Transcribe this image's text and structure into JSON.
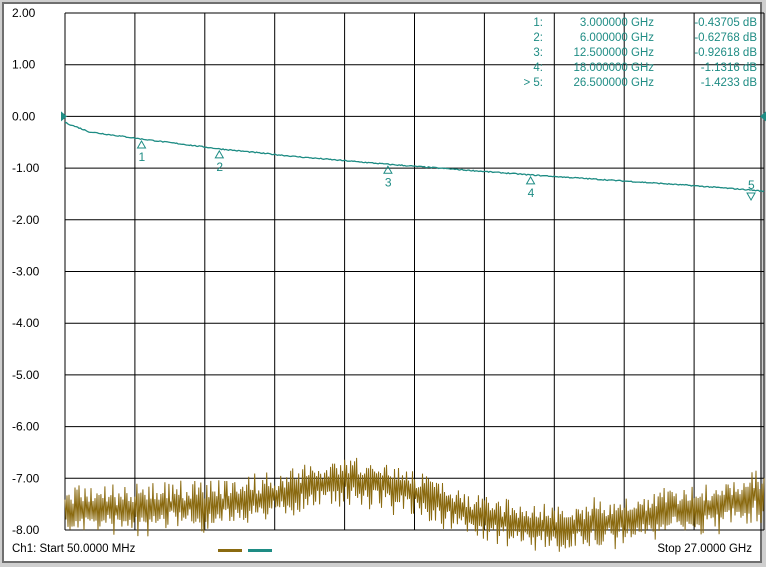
{
  "colors": {
    "trace1": "#1e8c84",
    "trace2": "#8a6a10",
    "grid": "#000000",
    "marker": "#1e8c84"
  },
  "status": {
    "start_label": "Ch1: Start  50.0000 MHz",
    "stop_label": "Stop  27.0000 GHz"
  },
  "chart_data": {
    "type": "line",
    "ylim": [
      -8,
      2
    ],
    "xlim": [
      0.05,
      27
    ],
    "y_ticks": [
      "2.00",
      "1.00",
      "0.00",
      "-1.00",
      "-2.00",
      "-3.00",
      "-4.00",
      "-5.00",
      "-6.00",
      "-7.00",
      "-8.00"
    ],
    "grid": true,
    "series": [
      {
        "x": [
          0.05,
          1,
          3,
          6,
          9,
          12.5,
          15,
          18,
          21,
          24,
          26.5,
          27
        ],
        "values": [
          -0.12,
          -0.3,
          -0.43705,
          -0.62768,
          -0.78,
          -0.92618,
          -1.02,
          -1.1316,
          -1.23,
          -1.33,
          -1.4233,
          -1.45
        ]
      },
      {
        "x": [
          0.05,
          2,
          4,
          6,
          8,
          10,
          11,
          12,
          13,
          14,
          15,
          16,
          17,
          18,
          19,
          20,
          21,
          22,
          23,
          24,
          25,
          26,
          27
        ],
        "values": [
          -7.65,
          -7.6,
          -7.55,
          -7.5,
          -7.35,
          -7.1,
          -7.05,
          -7.1,
          -7.2,
          -7.35,
          -7.55,
          -7.75,
          -7.85,
          -7.9,
          -7.95,
          -7.9,
          -7.85,
          -7.8,
          -7.7,
          -7.6,
          -7.55,
          -7.45,
          -7.3
        ]
      }
    ],
    "markers": [
      {
        "id": "1",
        "readout_label": "1:",
        "x": 3.0,
        "y": -0.43705,
        "freq_text": "3.000000 GHz",
        "value_text": "-0.43705 dB",
        "symbol": "up"
      },
      {
        "id": "2",
        "readout_label": "2:",
        "x": 6.0,
        "y": -0.62768,
        "freq_text": "6.000000 GHz",
        "value_text": "-0.62768 dB",
        "symbol": "up"
      },
      {
        "id": "3",
        "readout_label": "3:",
        "x": 12.5,
        "y": -0.92618,
        "freq_text": "12.500000 GHz",
        "value_text": "-0.92618 dB",
        "symbol": "up"
      },
      {
        "id": "4",
        "readout_label": "4:",
        "x": 18.0,
        "y": -1.1316,
        "freq_text": "18.000000 GHz",
        "value_text": "-1.1316 dB",
        "symbol": "up"
      },
      {
        "id": "5",
        "readout_label": "> 5:",
        "x": 26.5,
        "y": -1.4233,
        "freq_text": "26.500000 GHz",
        "value_text": "-1.4233 dB",
        "symbol": "down"
      }
    ]
  }
}
